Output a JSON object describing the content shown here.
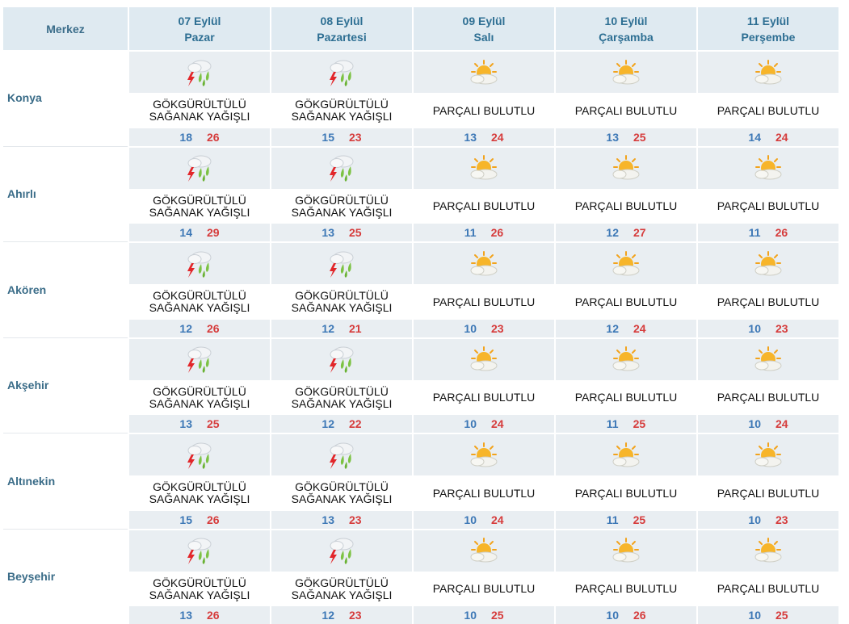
{
  "header": {
    "merkez_label": "Merkez",
    "days": [
      {
        "date": "07 Eylül",
        "weekday": "Pazar"
      },
      {
        "date": "08 Eylül",
        "weekday": "Pazartesi"
      },
      {
        "date": "09 Eylül",
        "weekday": "Salı"
      },
      {
        "date": "10 Eylül",
        "weekday": "Çarşamba"
      },
      {
        "date": "11 Eylül",
        "weekday": "Perşembe"
      }
    ]
  },
  "rows": [
    {
      "city": "Konya",
      "days": [
        {
          "icon": "thunderstorm-icon",
          "line1": "GÖKGÜRÜLTÜLÜ",
          "line2": "SAĞANAK YAĞIŞLI",
          "min": "18",
          "max": "26"
        },
        {
          "icon": "thunderstorm-icon",
          "line1": "GÖKGÜRÜLTÜLÜ",
          "line2": "SAĞANAK YAĞIŞLI",
          "min": "15",
          "max": "23"
        },
        {
          "icon": "partly-cloudy-icon",
          "line1": "PARÇALI BULUTLU",
          "line2": "",
          "min": "13",
          "max": "24"
        },
        {
          "icon": "partly-cloudy-icon",
          "line1": "PARÇALI BULUTLU",
          "line2": "",
          "min": "13",
          "max": "25"
        },
        {
          "icon": "partly-cloudy-icon",
          "line1": "PARÇALI BULUTLU",
          "line2": "",
          "min": "14",
          "max": "24"
        }
      ]
    },
    {
      "city": "Ahırlı",
      "days": [
        {
          "icon": "thunderstorm-icon",
          "line1": "GÖKGÜRÜLTÜLÜ",
          "line2": "SAĞANAK YAĞIŞLI",
          "min": "14",
          "max": "29"
        },
        {
          "icon": "thunderstorm-icon",
          "line1": "GÖKGÜRÜLTÜLÜ",
          "line2": "SAĞANAK YAĞIŞLI",
          "min": "13",
          "max": "25"
        },
        {
          "icon": "partly-cloudy-icon",
          "line1": "PARÇALI BULUTLU",
          "line2": "",
          "min": "11",
          "max": "26"
        },
        {
          "icon": "partly-cloudy-icon",
          "line1": "PARÇALI BULUTLU",
          "line2": "",
          "min": "12",
          "max": "27"
        },
        {
          "icon": "partly-cloudy-icon",
          "line1": "PARÇALI BULUTLU",
          "line2": "",
          "min": "11",
          "max": "26"
        }
      ]
    },
    {
      "city": "Akören",
      "days": [
        {
          "icon": "thunderstorm-icon",
          "line1": "GÖKGÜRÜLTÜLÜ",
          "line2": "SAĞANAK YAĞIŞLI",
          "min": "12",
          "max": "26"
        },
        {
          "icon": "thunderstorm-icon",
          "line1": "GÖKGÜRÜLTÜLÜ",
          "line2": "SAĞANAK YAĞIŞLI",
          "min": "12",
          "max": "21"
        },
        {
          "icon": "partly-cloudy-icon",
          "line1": "PARÇALI BULUTLU",
          "line2": "",
          "min": "10",
          "max": "23"
        },
        {
          "icon": "partly-cloudy-icon",
          "line1": "PARÇALI BULUTLU",
          "line2": "",
          "min": "12",
          "max": "24"
        },
        {
          "icon": "partly-cloudy-icon",
          "line1": "PARÇALI BULUTLU",
          "line2": "",
          "min": "10",
          "max": "23"
        }
      ]
    },
    {
      "city": "Akşehir",
      "days": [
        {
          "icon": "thunderstorm-icon",
          "line1": "GÖKGÜRÜLTÜLÜ",
          "line2": "SAĞANAK YAĞIŞLI",
          "min": "13",
          "max": "25"
        },
        {
          "icon": "thunderstorm-icon",
          "line1": "GÖKGÜRÜLTÜLÜ",
          "line2": "SAĞANAK YAĞIŞLI",
          "min": "12",
          "max": "22"
        },
        {
          "icon": "partly-cloudy-icon",
          "line1": "PARÇALI BULUTLU",
          "line2": "",
          "min": "10",
          "max": "24"
        },
        {
          "icon": "partly-cloudy-icon",
          "line1": "PARÇALI BULUTLU",
          "line2": "",
          "min": "11",
          "max": "25"
        },
        {
          "icon": "partly-cloudy-icon",
          "line1": "PARÇALI BULUTLU",
          "line2": "",
          "min": "10",
          "max": "24"
        }
      ]
    },
    {
      "city": "Altınekin",
      "days": [
        {
          "icon": "thunderstorm-icon",
          "line1": "GÖKGÜRÜLTÜLÜ",
          "line2": "SAĞANAK YAĞIŞLI",
          "min": "15",
          "max": "26"
        },
        {
          "icon": "thunderstorm-icon",
          "line1": "GÖKGÜRÜLTÜLÜ",
          "line2": "SAĞANAK YAĞIŞLI",
          "min": "13",
          "max": "23"
        },
        {
          "icon": "partly-cloudy-icon",
          "line1": "PARÇALI BULUTLU",
          "line2": "",
          "min": "10",
          "max": "24"
        },
        {
          "icon": "partly-cloudy-icon",
          "line1": "PARÇALI BULUTLU",
          "line2": "",
          "min": "11",
          "max": "25"
        },
        {
          "icon": "partly-cloudy-icon",
          "line1": "PARÇALI BULUTLU",
          "line2": "",
          "min": "10",
          "max": "23"
        }
      ]
    },
    {
      "city": "Beyşehir",
      "days": [
        {
          "icon": "thunderstorm-icon",
          "line1": "GÖKGÜRÜLTÜLÜ",
          "line2": "SAĞANAK YAĞIŞLI",
          "min": "13",
          "max": "26"
        },
        {
          "icon": "thunderstorm-icon",
          "line1": "GÖKGÜRÜLTÜLÜ",
          "line2": "SAĞANAK YAĞIŞLI",
          "min": "12",
          "max": "23"
        },
        {
          "icon": "partly-cloudy-icon",
          "line1": "PARÇALI BULUTLU",
          "line2": "",
          "min": "10",
          "max": "25"
        },
        {
          "icon": "partly-cloudy-icon",
          "line1": "PARÇALI BULUTLU",
          "line2": "",
          "min": "10",
          "max": "26"
        },
        {
          "icon": "partly-cloudy-icon",
          "line1": "PARÇALI BULUTLU",
          "line2": "",
          "min": "10",
          "max": "25"
        }
      ]
    }
  ],
  "colors": {
    "header_bg": "#dfeaf1",
    "header_text": "#2e6f93",
    "min_temp": "#3d78b6",
    "max_temp": "#d63c3c",
    "city_text": "#3a6c88"
  }
}
